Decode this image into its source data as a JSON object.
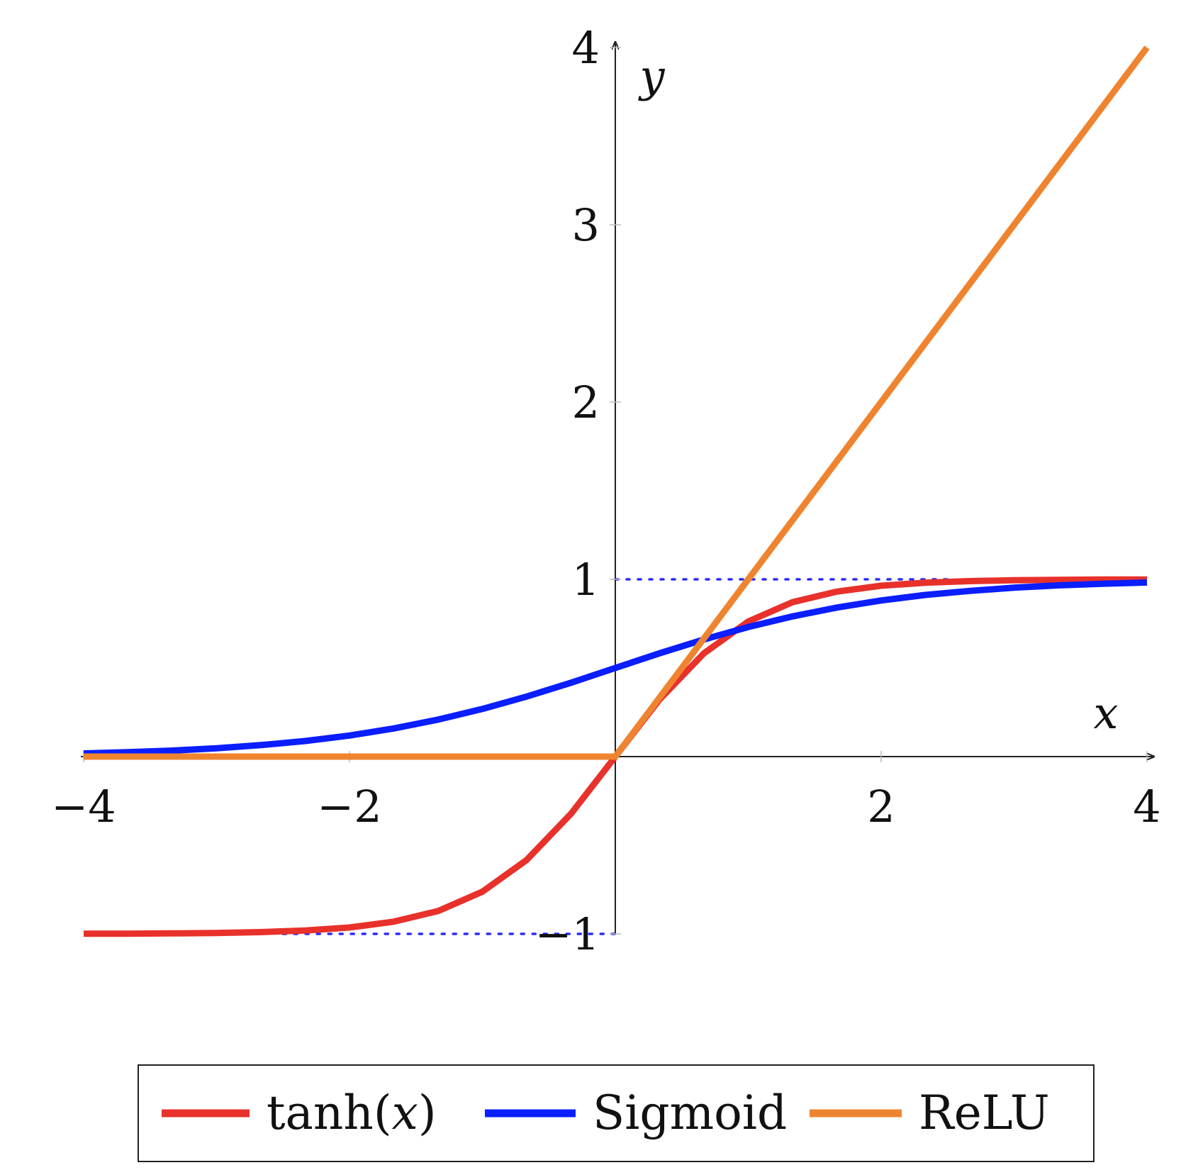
{
  "chart_data": {
    "type": "line",
    "xlabel": "x",
    "ylabel": "y",
    "xlim": [
      -4,
      4
    ],
    "ylim": [
      -1,
      4
    ],
    "xticks": [
      -4,
      -2,
      2,
      4
    ],
    "xtick_labels": [
      "−4",
      "−2",
      "2",
      "4"
    ],
    "yticks": [
      -1,
      1,
      2,
      3,
      4
    ],
    "ytick_labels": [
      "−1",
      "1",
      "2",
      "3",
      "4"
    ],
    "grid": false,
    "legend_position": "bottom",
    "reference_lines": [
      {
        "y": 1,
        "x_from": 0,
        "x_to": 2.5,
        "style": "dotted",
        "color": "#2a2aff"
      },
      {
        "y": -1,
        "x_from": -2.5,
        "x_to": 0,
        "style": "dotted",
        "color": "#2a2aff"
      }
    ],
    "series": [
      {
        "name": "tanh(x)",
        "color": "#e8312b",
        "x": [
          -4,
          -3.667,
          -3.333,
          -3,
          -2.667,
          -2.333,
          -2,
          -1.667,
          -1.333,
          -1,
          -0.667,
          -0.333,
          0,
          0.333,
          0.667,
          1,
          1.333,
          1.667,
          2,
          2.333,
          2.667,
          3,
          3.333,
          3.667,
          4
        ],
        "y": [
          -0.999,
          -0.999,
          -0.997,
          -0.995,
          -0.99,
          -0.981,
          -0.964,
          -0.931,
          -0.871,
          -0.762,
          -0.583,
          -0.322,
          0,
          0.322,
          0.583,
          0.762,
          0.871,
          0.931,
          0.964,
          0.981,
          0.99,
          0.995,
          0.997,
          0.999,
          0.999
        ]
      },
      {
        "name": "Sigmoid",
        "color": "#0a1eff",
        "x": [
          -4,
          -3.667,
          -3.333,
          -3,
          -2.667,
          -2.333,
          -2,
          -1.667,
          -1.333,
          -1,
          -0.667,
          -0.333,
          0,
          0.333,
          0.667,
          1,
          1.333,
          1.667,
          2,
          2.333,
          2.667,
          3,
          3.333,
          3.667,
          4
        ],
        "y": [
          0.018,
          0.025,
          0.034,
          0.047,
          0.065,
          0.088,
          0.119,
          0.159,
          0.209,
          0.269,
          0.339,
          0.417,
          0.5,
          0.583,
          0.661,
          0.731,
          0.791,
          0.841,
          0.881,
          0.912,
          0.935,
          0.953,
          0.966,
          0.975,
          0.982
        ]
      },
      {
        "name": "ReLU",
        "color": "#ef8430",
        "x": [
          -4,
          0,
          4
        ],
        "y": [
          0,
          0,
          4
        ]
      }
    ]
  }
}
